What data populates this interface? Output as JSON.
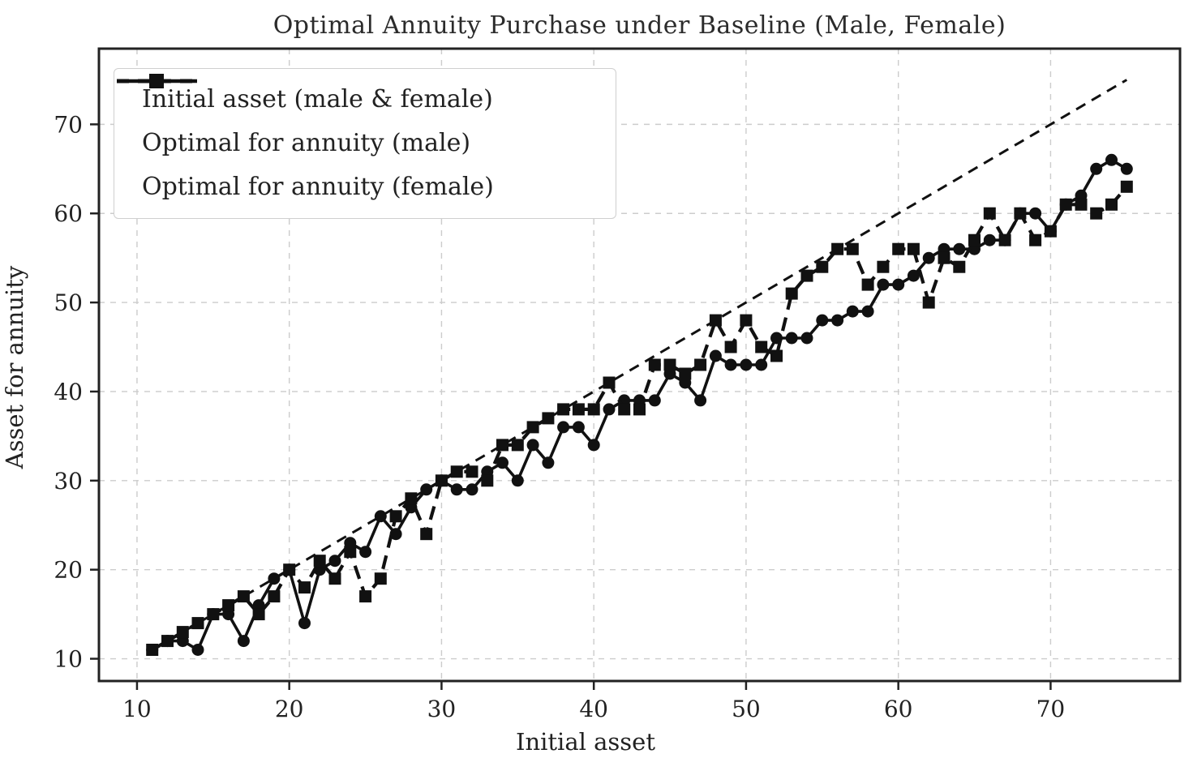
{
  "chart_data": {
    "type": "line",
    "title": "Optimal Annuity Purchase under Baseline (Male, Female)",
    "xlabel": "Initial asset",
    "ylabel": "Asset for annuity",
    "xlim": [
      7.5,
      78.5
    ],
    "ylim": [
      7.5,
      78.5
    ],
    "xticks": [
      10,
      20,
      30,
      40,
      50,
      60,
      70
    ],
    "yticks": [
      10,
      20,
      30,
      40,
      50,
      60,
      70
    ],
    "grid": true,
    "legend_position": "upper left",
    "colors": {
      "line": "#111111",
      "grid": "#cccccc",
      "spine": "#222222",
      "text": "#222222"
    },
    "x": [
      11,
      12,
      13,
      14,
      15,
      16,
      17,
      18,
      19,
      20,
      21,
      22,
      23,
      24,
      25,
      26,
      27,
      28,
      29,
      30,
      31,
      32,
      33,
      34,
      35,
      36,
      37,
      38,
      39,
      40,
      41,
      42,
      43,
      44,
      45,
      46,
      47,
      48,
      49,
      50,
      51,
      52,
      53,
      54,
      55,
      56,
      57,
      58,
      59,
      60,
      61,
      62,
      63,
      64,
      65,
      66,
      67,
      68,
      69,
      70,
      71,
      72,
      73,
      74,
      75
    ],
    "series": [
      {
        "name": "Initial asset (male & female)",
        "style": "dashed",
        "marker": "none",
        "values": [
          11,
          12,
          13,
          14,
          15,
          16,
          17,
          18,
          19,
          20,
          21,
          22,
          23,
          24,
          25,
          26,
          27,
          28,
          29,
          30,
          31,
          32,
          33,
          34,
          35,
          36,
          37,
          38,
          39,
          40,
          41,
          42,
          43,
          44,
          45,
          46,
          47,
          48,
          49,
          50,
          51,
          52,
          53,
          54,
          55,
          56,
          57,
          58,
          59,
          60,
          61,
          62,
          63,
          64,
          65,
          66,
          67,
          68,
          69,
          70,
          71,
          72,
          73,
          74,
          75
        ]
      },
      {
        "name": "Optimal for annuity (male)",
        "style": "solid",
        "marker": "circle",
        "values": [
          11,
          12,
          12,
          11,
          15,
          15,
          12,
          16,
          19,
          20,
          14,
          20,
          21,
          23,
          22,
          26,
          24,
          27,
          29,
          30,
          29,
          29,
          31,
          32,
          30,
          34,
          32,
          36,
          36,
          34,
          38,
          39,
          39,
          39,
          42,
          41,
          39,
          44,
          43,
          43,
          43,
          46,
          46,
          46,
          48,
          48,
          49,
          49,
          52,
          52,
          53,
          55,
          56,
          56,
          56,
          57,
          57,
          60,
          60,
          58,
          61,
          62,
          65,
          66,
          65
        ]
      },
      {
        "name": "Optimal for annuity (female)",
        "style": "dashed",
        "marker": "square",
        "values": [
          11,
          12,
          13,
          14,
          15,
          16,
          17,
          15,
          17,
          20,
          18,
          21,
          19,
          22,
          17,
          19,
          26,
          28,
          24,
          30,
          31,
          31,
          30,
          34,
          34,
          36,
          37,
          38,
          38,
          38,
          41,
          38,
          38,
          43,
          43,
          42,
          43,
          48,
          45,
          48,
          45,
          44,
          51,
          53,
          54,
          56,
          56,
          52,
          54,
          56,
          56,
          50,
          55,
          54,
          57,
          60,
          57,
          60,
          57,
          58,
          61,
          61,
          60,
          61,
          63
        ]
      }
    ]
  }
}
